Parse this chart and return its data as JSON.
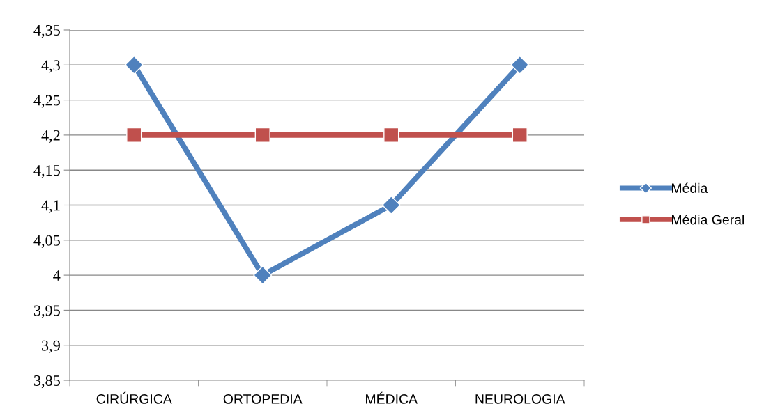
{
  "chart_data": {
    "type": "line",
    "categories": [
      "CIRÚRGICA",
      "ORTOPEDIA",
      "MÉDICA",
      "NEUROLOGIA"
    ],
    "series": [
      {
        "name": "Média",
        "color": "#4f81bd",
        "marker": "diamond",
        "values": [
          4.3,
          4.0,
          4.1,
          4.3
        ]
      },
      {
        "name": "Média Geral",
        "color": "#c0504d",
        "marker": "square",
        "values": [
          4.2,
          4.2,
          4.2,
          4.2
        ]
      }
    ],
    "ylim": [
      3.85,
      4.35
    ],
    "yticks": [
      {
        "value": 3.85,
        "label": "3,85"
      },
      {
        "value": 3.9,
        "label": "3,9"
      },
      {
        "value": 3.95,
        "label": "3,95"
      },
      {
        "value": 4,
        "label": "4"
      },
      {
        "value": 4.05,
        "label": "4,05"
      },
      {
        "value": 4.1,
        "label": "4,1"
      },
      {
        "value": 4.15,
        "label": "4,15"
      },
      {
        "value": 4.2,
        "label": "4,2"
      },
      {
        "value": 4.25,
        "label": "4,25"
      },
      {
        "value": 4.3,
        "label": "4,3"
      },
      {
        "value": 4.35,
        "label": "4,35"
      }
    ],
    "grid": "y",
    "legend": "right",
    "line_style": "solid"
  }
}
